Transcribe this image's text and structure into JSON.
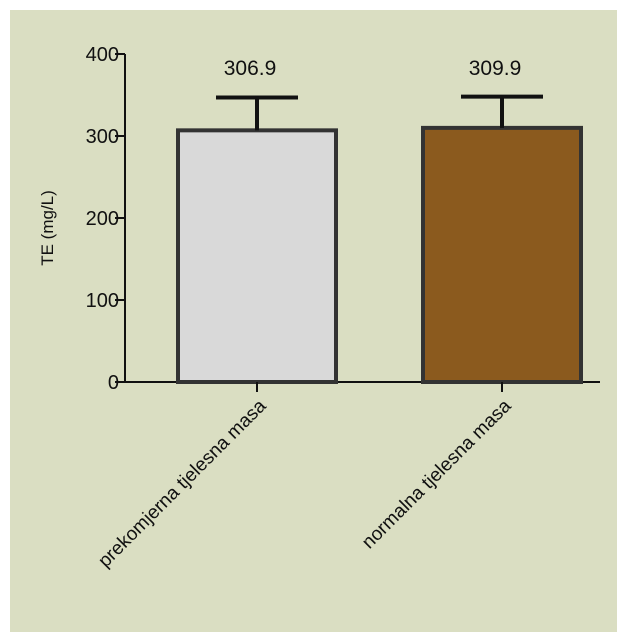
{
  "chart_data": {
    "type": "bar",
    "title": "",
    "xlabel": "",
    "ylabel": "TE (mg/L)",
    "ylim": [
      0,
      400
    ],
    "yticks": [
      0,
      100,
      200,
      300,
      400
    ],
    "categories": [
      "prekomjerna tjelesna masa",
      "normalna tjelesna masa"
    ],
    "values": [
      306.9,
      309.9
    ],
    "value_labels": [
      "306.9",
      "309.9"
    ],
    "error_upper": [
      347,
      348
    ],
    "colors": {
      "background": "#dadec2",
      "bars": [
        "#d9d9d9",
        "#8b5a1e"
      ],
      "outline": "#333333"
    },
    "grid": false,
    "legend": "none"
  }
}
